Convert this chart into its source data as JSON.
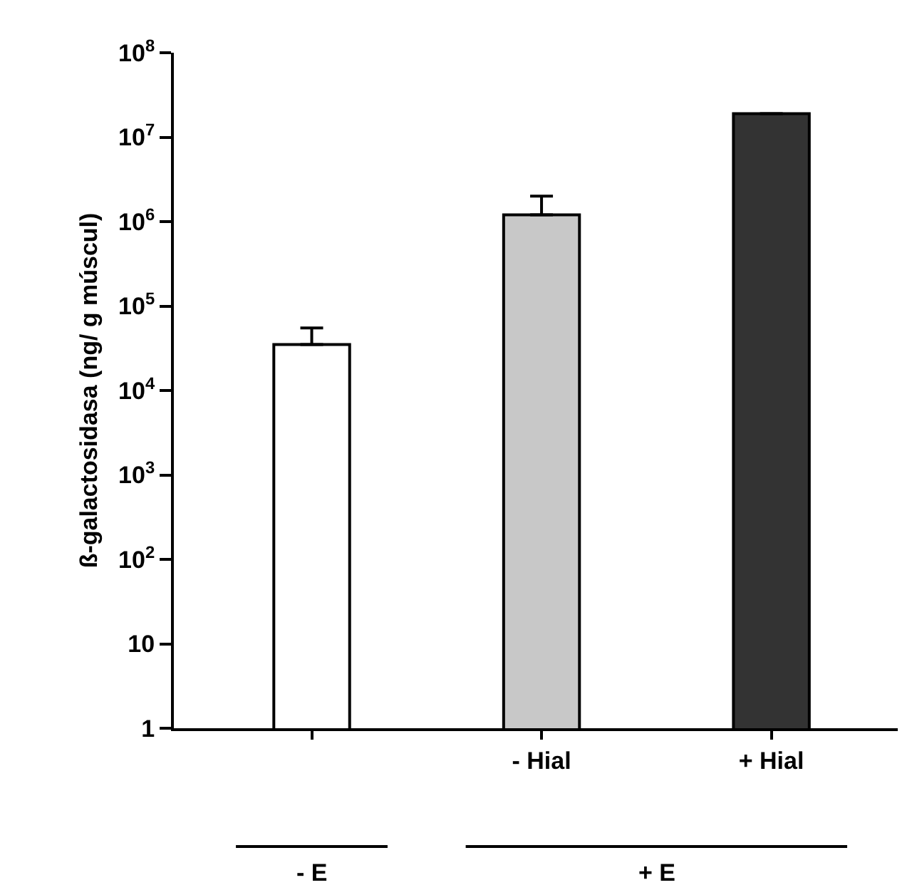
{
  "chart_data": {
    "type": "bar",
    "ylabel": "ß-galactosidasa (ng/ g múscul)",
    "categories": [
      null,
      "- Hial",
      "+ Hial"
    ],
    "values": [
      35000,
      1200000,
      19000000
    ],
    "colors": [
      "#ffffff",
      "#c8c8c8",
      "#333333"
    ],
    "errors": [
      [
        35000,
        55000
      ],
      [
        1200000,
        2000000
      ],
      null
    ],
    "log": true,
    "ylim": [
      1,
      100000000
    ],
    "yticks": [
      1,
      10,
      {
        "value": 100,
        "label": "10$^{2}$"
      },
      {
        "value": 1000,
        "label": "10$^{3}$"
      },
      {
        "value": 10000,
        "label": "10$^{4}$"
      },
      {
        "value": 100000,
        "label": "10$^{5}$"
      },
      {
        "value": 1000000,
        "label": "10$^{6}$"
      },
      {
        "value": 10000000,
        "label": "10$^{7}$"
      },
      {
        "value": 100000000,
        "label": "10$^{8}$"
      }
    ],
    "legend": false,
    "annotations": [
      "- E",
      "+ E"
    ]
  }
}
